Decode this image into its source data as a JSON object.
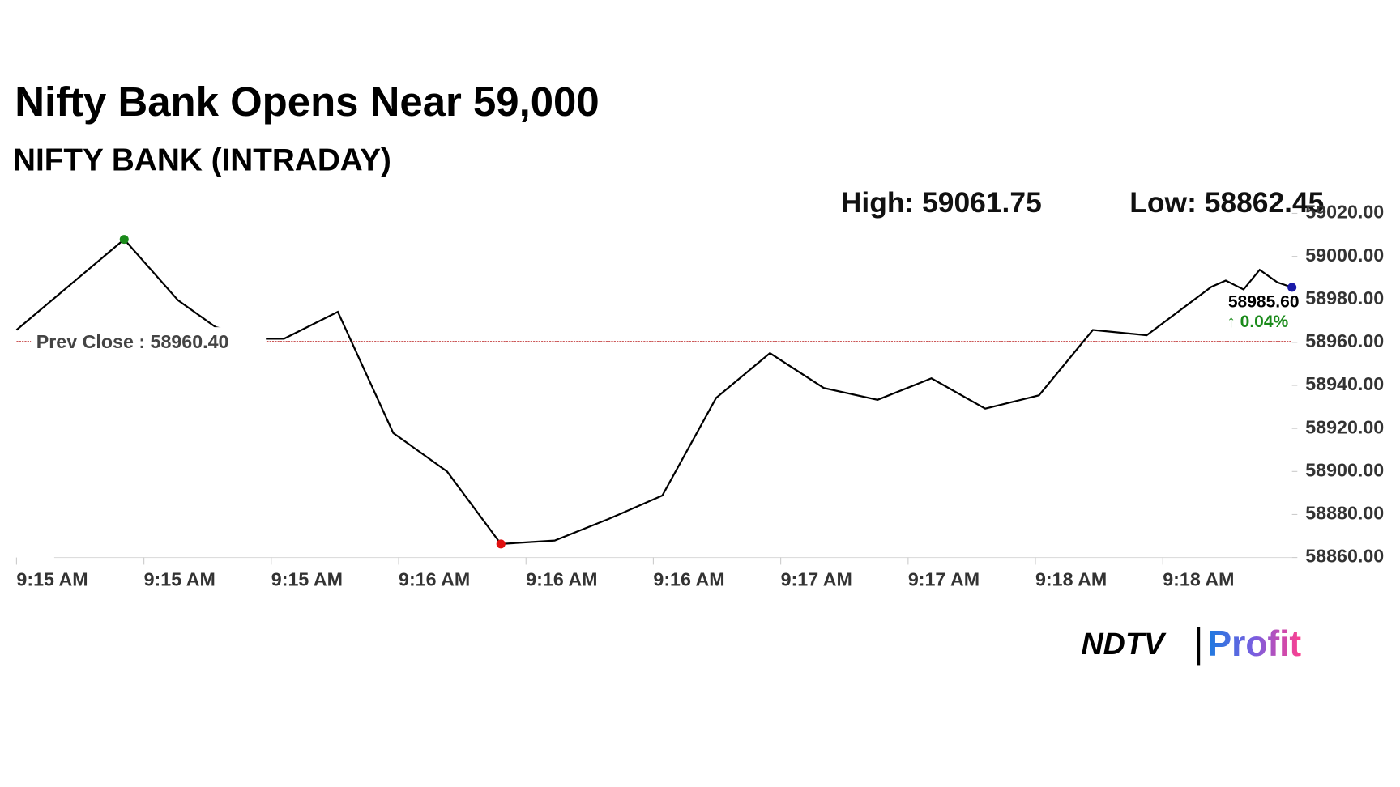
{
  "chart_data": {
    "type": "line",
    "title": "Nifty Bank Opens Near 59,000",
    "subtitle": "NIFTY BANK (INTRADAY)",
    "high_text": "High: 59061.75",
    "low_text": "Low: 58862.45",
    "prev_close": 58960.4,
    "prev_close_label": "Prev Close : 58960.40",
    "last_value_label": "58985.60",
    "change_label": "↑ 0.04%",
    "x": [
      0,
      2,
      3,
      3.7,
      4.63,
      4.97,
      5.97,
      7,
      8,
      9,
      10,
      11,
      12,
      13,
      14,
      15,
      16,
      17,
      18,
      19,
      20,
      21,
      22.2,
      22.47,
      22.8,
      23.1,
      23.43,
      23.7
    ],
    "series": [
      {
        "name": "NIFTY BANK",
        "color": "#000000",
        "values": [
          58965.8,
          59007.9,
          58979.6,
          58967.1,
          58961.7,
          58961.7,
          58974.2,
          58917.9,
          58900,
          58866.3,
          58867.9,
          58877.9,
          58888.8,
          58934.2,
          58955,
          58938.8,
          58933.3,
          58943.3,
          58929.2,
          58935.4,
          58965.8,
          58963.3,
          58985.8,
          58988.75,
          58984.6,
          58993.75,
          58987.9,
          58985.6
        ]
      }
    ],
    "markers": [
      {
        "index": 1,
        "color": "#1a8a1a"
      },
      {
        "index": 9,
        "color": "#e01010"
      },
      {
        "index": 27,
        "color": "#1a1aa8"
      }
    ],
    "xlim": [
      0,
      23.7
    ],
    "xticks": [
      {
        "value": 0,
        "label": "9:15 AM"
      },
      {
        "value": 2.367,
        "label": "9:15 AM"
      },
      {
        "value": 4.733,
        "label": "9:15 AM"
      },
      {
        "value": 7.1,
        "label": "9:16 AM"
      },
      {
        "value": 9.467,
        "label": "9:16 AM"
      },
      {
        "value": 11.833,
        "label": "9:16 AM"
      },
      {
        "value": 14.2,
        "label": "9:17 AM"
      },
      {
        "value": 16.567,
        "label": "9:17 AM"
      },
      {
        "value": 18.933,
        "label": "9:18 AM"
      },
      {
        "value": 21.3,
        "label": "9:18 AM"
      }
    ],
    "ylim": [
      58860,
      59020
    ],
    "yticks": [
      {
        "value": 58860,
        "label": "58860.00"
      },
      {
        "value": 58880,
        "label": "58880.00"
      },
      {
        "value": 58900,
        "label": "58900.00"
      },
      {
        "value": 58920,
        "label": "58920.00"
      },
      {
        "value": 58940,
        "label": "58940.00"
      },
      {
        "value": 58960,
        "label": "58960.00"
      },
      {
        "value": 58980,
        "label": "58980.00"
      },
      {
        "value": 59000,
        "label": "59000.00"
      },
      {
        "value": 59020,
        "label": "59020.00"
      }
    ],
    "logo": [
      "NDTV",
      "Profit"
    ]
  }
}
